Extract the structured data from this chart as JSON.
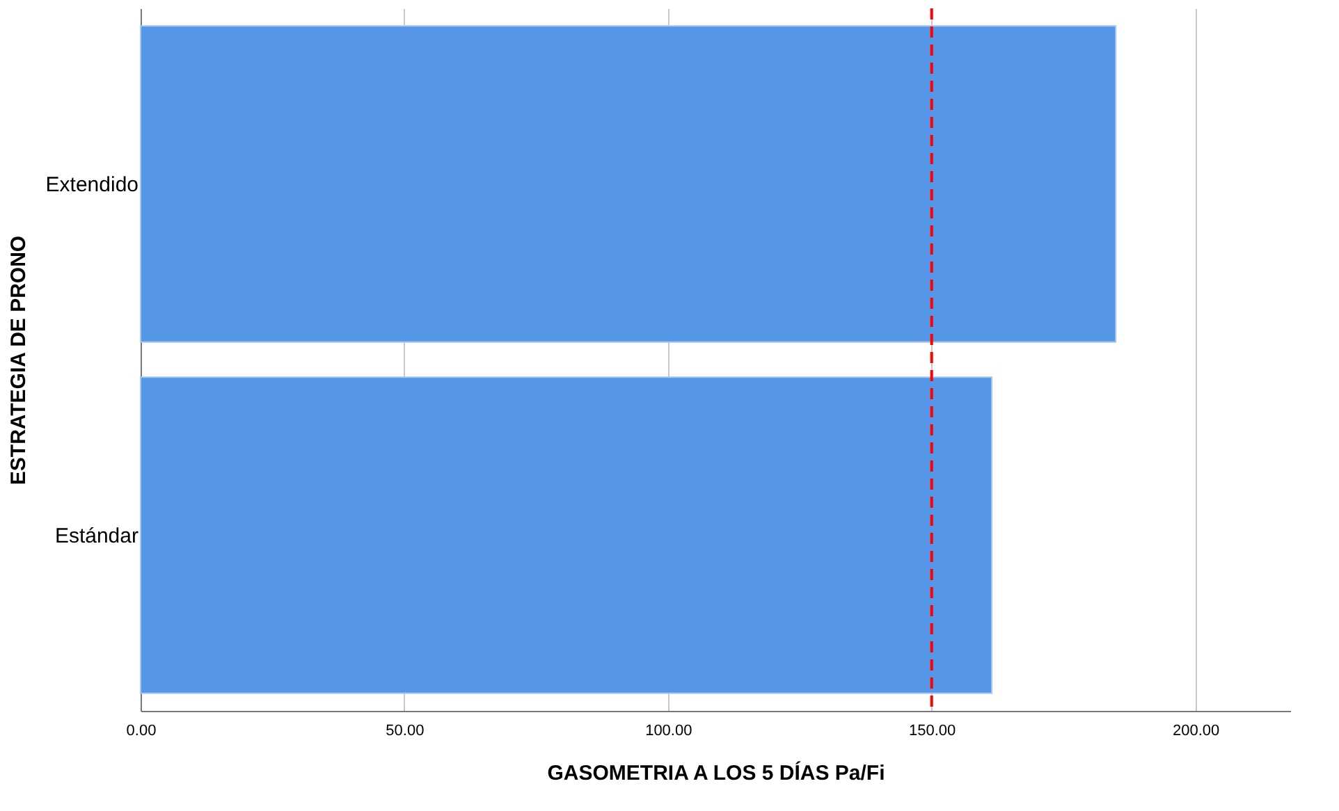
{
  "chart_data": {
    "type": "bar",
    "orientation": "horizontal",
    "xlabel": "GASOMETRIA A LOS 5 DÍAS  Pa/Fi",
    "ylabel": "ESTRATEGIA DE PRONO",
    "categories": [
      "Extendido",
      "Estándar"
    ],
    "values": [
      184.9,
      161.4
    ],
    "color": "#5596e6",
    "xlim": [
      0,
      218
    ],
    "xticks": [
      {
        "value": 0,
        "label": "0.00"
      },
      {
        "value": 50,
        "label": "50.00"
      },
      {
        "value": 100,
        "label": "100.00"
      },
      {
        "value": 150,
        "label": "150.00"
      },
      {
        "value": 200,
        "label": "200.00"
      }
    ],
    "ref_lines": [
      {
        "axis": "x",
        "value": 150,
        "color": "#ff0000",
        "line_style": "dashed"
      }
    ],
    "grid": "x"
  }
}
